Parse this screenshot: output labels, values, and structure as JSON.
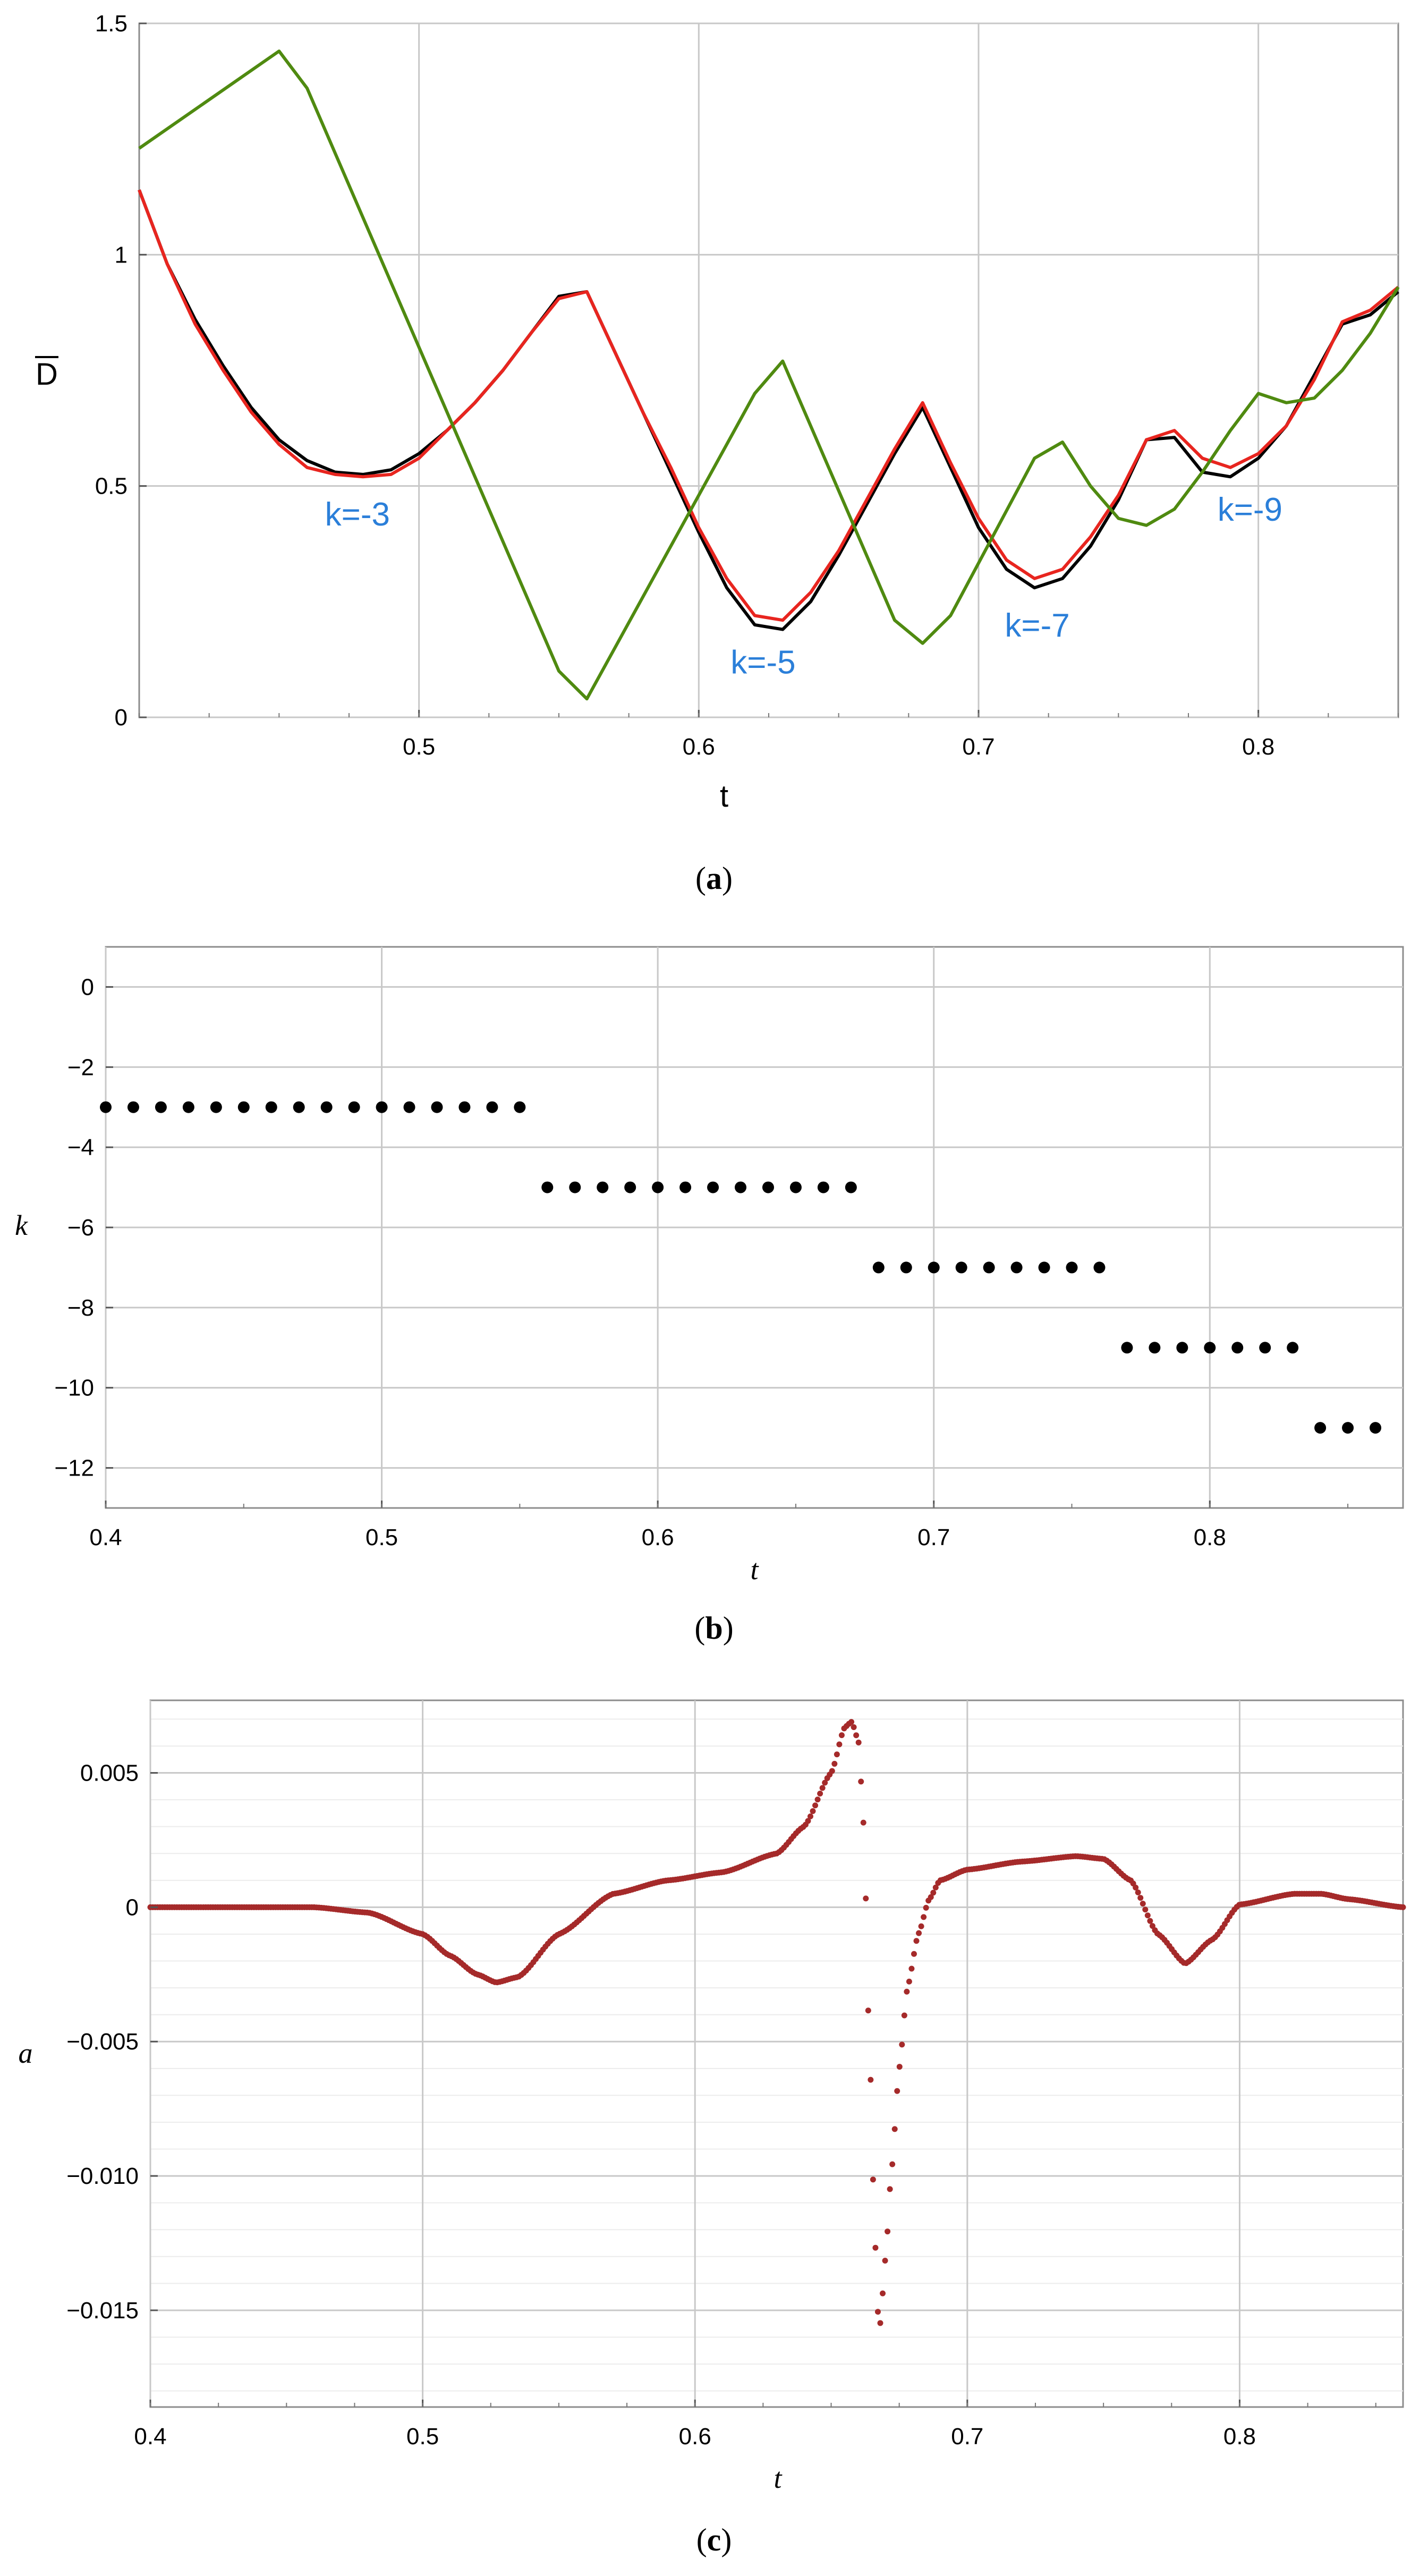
{
  "chart_data": [
    {
      "type": "line",
      "panel_caption": "a",
      "title": "",
      "xlabel": "t",
      "ylabel": "D",
      "ylabel_overline": true,
      "xlim": [
        0.4,
        0.85
      ],
      "ylim": [
        0,
        1.5
      ],
      "xticks": [
        0.5,
        0.6,
        0.7,
        0.8
      ],
      "xtick_labels": [
        "0.5",
        "0.6",
        "0.7",
        "0.8"
      ],
      "yticks": [
        0,
        0.5,
        1,
        1.5
      ],
      "ytick_labels": [
        "0",
        "0.5",
        "1",
        "1.5"
      ],
      "grid": true,
      "annotation_color": "#2b7fd9",
      "annotations": [
        {
          "text": "k=-3",
          "x": 0.478,
          "y": 0.44
        },
        {
          "text": "k=-5",
          "x": 0.623,
          "y": 0.12
        },
        {
          "text": "k=-7",
          "x": 0.721,
          "y": 0.2
        },
        {
          "text": "k=-9",
          "x": 0.797,
          "y": 0.45
        }
      ],
      "series": [
        {
          "color": "#000000",
          "x": [
            0.4,
            0.41,
            0.42,
            0.43,
            0.44,
            0.45,
            0.46,
            0.47,
            0.48,
            0.49,
            0.5,
            0.51,
            0.52,
            0.53,
            0.54,
            0.55,
            0.56,
            0.57,
            0.58,
            0.59,
            0.6,
            0.61,
            0.62,
            0.63,
            0.64,
            0.65,
            0.66,
            0.67,
            0.68,
            0.69,
            0.7,
            0.71,
            0.72,
            0.73,
            0.74,
            0.75,
            0.76,
            0.77,
            0.78,
            0.79,
            0.8,
            0.81,
            0.82,
            0.83,
            0.84,
            0.85
          ],
          "y": [
            1.14,
            0.98,
            0.86,
            0.76,
            0.67,
            0.6,
            0.555,
            0.53,
            0.525,
            0.535,
            0.57,
            0.62,
            0.68,
            0.75,
            0.83,
            0.91,
            0.92,
            0.79,
            0.66,
            0.53,
            0.4,
            0.28,
            0.2,
            0.19,
            0.25,
            0.35,
            0.46,
            0.57,
            0.67,
            0.54,
            0.41,
            0.32,
            0.28,
            0.3,
            0.37,
            0.47,
            0.6,
            0.605,
            0.53,
            0.52,
            0.56,
            0.63,
            0.74,
            0.85,
            0.87,
            0.92
          ]
        },
        {
          "color": "#e8251f",
          "x": [
            0.4,
            0.41,
            0.42,
            0.43,
            0.44,
            0.45,
            0.46,
            0.47,
            0.48,
            0.49,
            0.5,
            0.51,
            0.52,
            0.53,
            0.54,
            0.55,
            0.56,
            0.57,
            0.58,
            0.59,
            0.6,
            0.61,
            0.62,
            0.63,
            0.64,
            0.65,
            0.66,
            0.67,
            0.68,
            0.69,
            0.7,
            0.71,
            0.72,
            0.73,
            0.74,
            0.75,
            0.76,
            0.77,
            0.78,
            0.79,
            0.8,
            0.81,
            0.82,
            0.83,
            0.84,
            0.85
          ],
          "y": [
            1.14,
            0.98,
            0.85,
            0.75,
            0.66,
            0.59,
            0.54,
            0.525,
            0.52,
            0.525,
            0.56,
            0.62,
            0.68,
            0.75,
            0.83,
            0.905,
            0.92,
            0.79,
            0.66,
            0.54,
            0.41,
            0.3,
            0.22,
            0.21,
            0.27,
            0.36,
            0.47,
            0.58,
            0.68,
            0.55,
            0.43,
            0.34,
            0.3,
            0.32,
            0.39,
            0.48,
            0.6,
            0.62,
            0.56,
            0.54,
            0.57,
            0.63,
            0.73,
            0.855,
            0.88,
            0.93
          ]
        },
        {
          "color": "#4f8a10",
          "x": [
            0.4,
            0.45,
            0.46,
            0.55,
            0.56,
            0.62,
            0.63,
            0.67,
            0.68,
            0.69,
            0.72,
            0.73,
            0.74,
            0.75,
            0.76,
            0.77,
            0.78,
            0.79,
            0.8,
            0.81,
            0.82,
            0.83,
            0.84,
            0.85
          ],
          "y": [
            1.23,
            1.44,
            1.36,
            0.1,
            0.04,
            0.7,
            0.77,
            0.21,
            0.16,
            0.22,
            0.56,
            0.595,
            0.5,
            0.43,
            0.415,
            0.45,
            0.53,
            0.62,
            0.7,
            0.68,
            0.69,
            0.75,
            0.83,
            0.93
          ]
        }
      ]
    },
    {
      "type": "scatter",
      "panel_caption": "b",
      "title": "",
      "xlabel": "t",
      "ylabel": "k",
      "xlim": [
        0.4,
        0.87
      ],
      "ylim": [
        -13,
        1
      ],
      "xticks": [
        0.4,
        0.5,
        0.6,
        0.7,
        0.8
      ],
      "xtick_labels": [
        "0.4",
        "0.5",
        "0.6",
        "0.7",
        "0.8"
      ],
      "yticks": [
        0,
        -2,
        -4,
        -6,
        -8,
        -10,
        -12
      ],
      "ytick_labels": [
        "0",
        "−2",
        "−4",
        "−6",
        "−8",
        "−10",
        "−12"
      ],
      "grid": true,
      "marker_color": "#000000",
      "points": [
        {
          "k": -3,
          "t_start": 0.4,
          "t_end": 0.55
        },
        {
          "k": -5,
          "t_start": 0.56,
          "t_end": 0.67
        },
        {
          "k": -7,
          "t_start": 0.68,
          "t_end": 0.76
        },
        {
          "k": -9,
          "t_start": 0.77,
          "t_end": 0.83
        },
        {
          "k": -11,
          "t_start": 0.84,
          "t_end": 0.86
        }
      ],
      "step": 0.01
    },
    {
      "type": "scatter",
      "panel_caption": "c",
      "title": "",
      "xlabel": "t",
      "ylabel": "a",
      "xlim": [
        0.4,
        0.86
      ],
      "ylim": [
        -0.0186,
        0.0077
      ],
      "xticks": [
        0.4,
        0.5,
        0.6,
        0.7,
        0.8
      ],
      "xtick_labels": [
        "0.4",
        "0.5",
        "0.6",
        "0.7",
        "0.8"
      ],
      "yticks": [
        0.005,
        0,
        -0.005,
        -0.01,
        -0.015
      ],
      "ytick_labels": [
        "0.005",
        "0",
        "−0.005",
        "−0.010",
        "−0.015"
      ],
      "grid": true,
      "marker_color": "#a52a2a",
      "curve_knots": {
        "x": [
          0.4,
          0.46,
          0.48,
          0.5,
          0.51,
          0.52,
          0.527,
          0.535,
          0.55,
          0.57,
          0.59,
          0.61,
          0.63,
          0.64,
          0.65,
          0.655,
          0.6575,
          0.66,
          0.662,
          0.664,
          0.666,
          0.667,
          0.668,
          0.67,
          0.672,
          0.675,
          0.678,
          0.682,
          0.686,
          0.69,
          0.7,
          0.72,
          0.74,
          0.75,
          0.76,
          0.77,
          0.78,
          0.79,
          0.8,
          0.82,
          0.83,
          0.84,
          0.86
        ],
        "y": [
          0,
          0,
          -0.0002,
          -0.001,
          -0.0018,
          -0.0025,
          -0.0028,
          -0.0026,
          -0.001,
          0.0005,
          0.001,
          0.0013,
          0.002,
          0.003,
          0.005,
          0.0067,
          0.0069,
          0.0062,
          0.003,
          -0.005,
          -0.012,
          -0.015,
          -0.0155,
          -0.013,
          -0.01,
          -0.006,
          -0.003,
          -0.001,
          0.0003,
          0.001,
          0.0014,
          0.0017,
          0.0019,
          0.0018,
          0.001,
          -0.001,
          -0.0021,
          -0.0012,
          0.0001,
          0.0005,
          0.0005,
          0.0003,
          0.0
        ]
      }
    }
  ]
}
